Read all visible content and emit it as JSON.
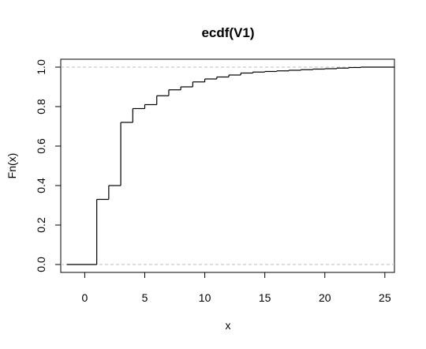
{
  "chart_data": {
    "type": "line",
    "subtype": "ecdf-step",
    "title": "ecdf(V1)",
    "xlabel": "x",
    "ylabel": "Fn(x)",
    "xlim": [
      -2,
      25.8
    ],
    "ylim": [
      -0.04,
      1.04
    ],
    "x_ticks": [
      0,
      5,
      10,
      15,
      20,
      25
    ],
    "y_ticks": [
      0.0,
      0.2,
      0.4,
      0.6,
      0.8,
      1.0
    ],
    "x_tick_labels": [
      "0",
      "5",
      "10",
      "15",
      "20",
      "25"
    ],
    "y_tick_labels": [
      "0.0",
      "0.2",
      "0.4",
      "0.6",
      "0.8",
      "1.0"
    ],
    "reference_lines_y": [
      0,
      1
    ],
    "grid": false,
    "x": [
      1,
      2,
      3,
      4,
      5,
      6,
      7,
      8,
      9,
      10,
      11,
      12,
      13,
      14,
      15,
      16,
      17,
      18,
      19,
      20,
      21,
      22,
      23
    ],
    "y": [
      0.33,
      0.4,
      0.72,
      0.79,
      0.81,
      0.855,
      0.885,
      0.9,
      0.925,
      0.94,
      0.95,
      0.96,
      0.97,
      0.975,
      0.978,
      0.981,
      0.984,
      0.987,
      0.99,
      0.992,
      0.995,
      0.998,
      1.0
    ],
    "left_extent": -1.5,
    "right_extent": 25.8
  }
}
